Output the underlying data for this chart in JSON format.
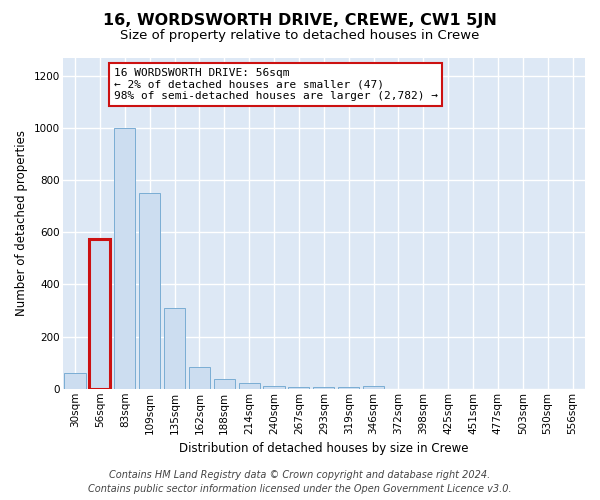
{
  "title": "16, WORDSWORTH DRIVE, CREWE, CW1 5JN",
  "subtitle": "Size of property relative to detached houses in Crewe",
  "xlabel": "Distribution of detached houses by size in Crewe",
  "ylabel": "Number of detached properties",
  "categories": [
    "30sqm",
    "56sqm",
    "83sqm",
    "109sqm",
    "135sqm",
    "162sqm",
    "188sqm",
    "214sqm",
    "240sqm",
    "267sqm",
    "293sqm",
    "319sqm",
    "346sqm",
    "372sqm",
    "398sqm",
    "425sqm",
    "451sqm",
    "477sqm",
    "503sqm",
    "530sqm",
    "556sqm"
  ],
  "values": [
    60,
    575,
    1000,
    750,
    310,
    85,
    38,
    22,
    12,
    5,
    5,
    5,
    12,
    0,
    0,
    0,
    0,
    0,
    0,
    0,
    0
  ],
  "bar_color": "#ccddf0",
  "bar_edge_color": "#7aadd4",
  "highlight_bar_index": 1,
  "highlight_bar_edge_color": "#cc1111",
  "annotation_box_text": "16 WORDSWORTH DRIVE: 56sqm\n← 2% of detached houses are smaller (47)\n98% of semi-detached houses are larger (2,782) →",
  "annotation_box_color": "#ffffff",
  "annotation_box_edge_color": "#cc1111",
  "ylim": [
    0,
    1270
  ],
  "yticks": [
    0,
    200,
    400,
    600,
    800,
    1000,
    1200
  ],
  "background_color": "#dde8f5",
  "grid_color": "#ffffff",
  "footer_line1": "Contains HM Land Registry data © Crown copyright and database right 2024.",
  "footer_line2": "Contains public sector information licensed under the Open Government Licence v3.0.",
  "title_fontsize": 11.5,
  "subtitle_fontsize": 9.5,
  "axis_label_fontsize": 8.5,
  "tick_fontsize": 7.5,
  "annotation_fontsize": 8,
  "footer_fontsize": 7
}
